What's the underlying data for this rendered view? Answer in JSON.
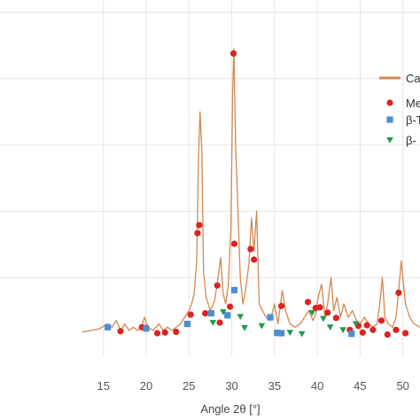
{
  "chart_data": {
    "type": "line",
    "xlabel": "Angle 2θ [°]",
    "xlim": [
      2.5,
      52
    ],
    "ylim": [
      0,
      100
    ],
    "grid": true,
    "legend_position": "right",
    "x_ticks": [
      15,
      20,
      25,
      30,
      35,
      40,
      45,
      50
    ],
    "x_tick_labels": [
      "15",
      "20",
      "25",
      "30",
      "35",
      "40",
      "45",
      "50"
    ],
    "colors": {
      "pattern": "#d4874f",
      "m": "#dd2222",
      "b1": "#4a8fd1",
      "b2": "#1f9a4d",
      "grid": "#e6e6e6"
    },
    "legend": [
      {
        "label": "Ca",
        "marker": "line"
      },
      {
        "label": "Me",
        "marker": "circle"
      },
      {
        "label": "β-T",
        "marker": "square"
      },
      {
        "label": "β-",
        "marker": "triangle"
      }
    ],
    "series": [
      {
        "marker": "line",
        "x": [
          12.5,
          13.5,
          14.5,
          15.5,
          16.0,
          16.5,
          17.0,
          17.5,
          18.0,
          18.5,
          19.0,
          19.5,
          19.8,
          20.2,
          20.8,
          21.5,
          22.0,
          22.5,
          23.0,
          23.5,
          24.0,
          24.5,
          25.0,
          25.3,
          25.6,
          25.9,
          26.1,
          26.3,
          26.5,
          26.7,
          27.0,
          27.5,
          28.0,
          28.3,
          28.7,
          29.0,
          29.3,
          29.6,
          29.9,
          30.1,
          30.25,
          30.45,
          30.7,
          31.0,
          31.3,
          31.6,
          32.0,
          32.3,
          32.6,
          32.9,
          33.2,
          33.6,
          34.0,
          34.5,
          35.0,
          35.4,
          35.9,
          36.3,
          36.8,
          37.4,
          38.0,
          38.5,
          39.0,
          39.5,
          39.8,
          40.1,
          40.5,
          40.9,
          41.2,
          41.6,
          41.9,
          42.3,
          42.7,
          43.1,
          43.6,
          44.1,
          44.6,
          45.0,
          45.5,
          46.0,
          46.5,
          47.0,
          47.3,
          47.6,
          47.9,
          48.3,
          48.8,
          49.2,
          49.5,
          49.8,
          50.3,
          50.8,
          51.3,
          52.0
        ],
        "y": [
          3.5,
          4,
          4.5,
          6,
          5,
          7,
          4,
          6,
          4,
          5,
          4,
          5.5,
          8,
          5,
          4,
          6,
          4,
          5,
          4,
          5,
          6,
          8,
          10,
          12,
          15,
          25,
          55,
          70,
          58,
          22,
          14,
          10,
          13,
          18,
          26,
          15,
          12,
          18,
          35,
          75,
          89,
          60,
          42,
          20,
          12,
          16,
          24,
          38,
          28,
          40,
          12,
          10,
          8,
          7,
          12,
          6,
          16,
          10,
          6,
          5,
          6,
          8,
          10,
          7,
          9,
          14,
          18,
          8,
          12,
          20,
          10,
          14,
          8,
          12,
          8,
          10,
          7,
          6,
          8,
          6,
          5,
          6,
          12,
          20,
          8,
          6,
          5,
          8,
          16,
          25,
          12,
          8,
          6,
          5
        ]
      },
      {
        "name": "Me",
        "marker": "circle",
        "x": [
          17.0,
          19.5,
          20.0,
          21.3,
          22.2,
          23.5,
          25.2,
          26.0,
          26.2,
          26.9,
          28.3,
          28.6,
          29.8,
          30.2,
          30.3,
          32.2,
          32.6,
          35.8,
          38.9,
          39.8,
          40.3,
          41.2,
          42.2,
          43.8,
          44.8,
          45.3,
          45.8,
          46.5,
          47.5,
          48.2,
          49.2,
          49.5,
          50.3
        ],
        "y": [
          3.8,
          5,
          4.8,
          3.2,
          3.4,
          3.6,
          8.8,
          33.4,
          35.8,
          9.2,
          17.6,
          6.4,
          11.2,
          87.6,
          30.2,
          28.6,
          25.4,
          11.4,
          12.6,
          10.8,
          11.0,
          9.4,
          7.8,
          4.2,
          5.4,
          3.4,
          5.6,
          4.2,
          7.0,
          2.8,
          4.2,
          15.4,
          3.2
        ]
      },
      {
        "name": "β-T",
        "marker": "square",
        "x": [
          15.5,
          20.0,
          24.8,
          27.6,
          29.5,
          30.3,
          34.5,
          35.8,
          35.3,
          44.0
        ],
        "y": [
          5.0,
          4.6,
          6.0,
          9.2,
          8.6,
          16.2,
          8.0,
          3.2,
          3.3,
          3.0
        ]
      },
      {
        "name": "β-",
        "marker": "triangle",
        "x": [
          27.8,
          29.0,
          31.0,
          31.5,
          33.5,
          36.8,
          38.2,
          39.4,
          40.7,
          41.5,
          43.0,
          44.5
        ],
        "y": [
          6.4,
          9.6,
          8.2,
          4.8,
          5.4,
          3.4,
          3.0,
          9.4,
          7.6,
          5.0,
          4.2,
          6.0
        ]
      }
    ]
  }
}
